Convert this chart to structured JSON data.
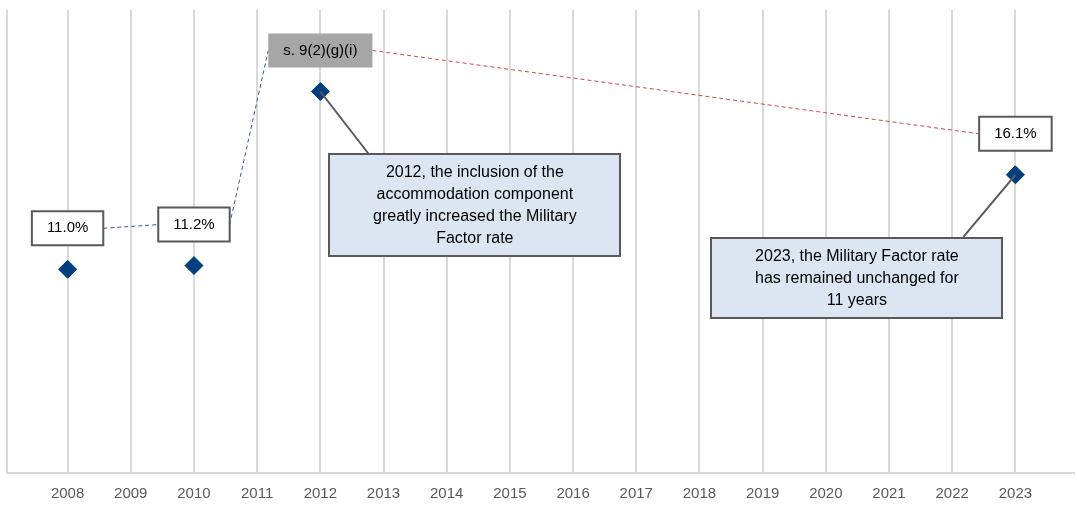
{
  "chart_data": {
    "type": "scatter",
    "categories": [
      "2008",
      "2009",
      "2010",
      "2011",
      "2012",
      "2013",
      "2014",
      "2015",
      "2016",
      "2017",
      "2018",
      "2019",
      "2020",
      "2021",
      "2022",
      "2023"
    ],
    "series": [
      {
        "color": "#003f7f",
        "values": [
          11.0,
          null,
          11.2,
          null,
          20.6,
          null,
          null,
          null,
          null,
          null,
          null,
          null,
          null,
          null,
          null,
          16.1
        ],
        "value_labels": [
          "11.0%",
          null,
          "11.2%",
          null,
          "s. 9(2)(g)(i)",
          null,
          null,
          null,
          null,
          null,
          null,
          null,
          null,
          null,
          null,
          "16.1%"
        ]
      }
    ],
    "ylim": [
      0,
      25
    ],
    "tick_labels": "x",
    "grid": "x",
    "legend": false,
    "marker": "diamond",
    "annotations": [
      {
        "text": "2012, the inclusion of the accommodation component greatly increased the Military Factor rate",
        "x": "2012",
        "y": 20.6
      },
      {
        "text": "2023, the Military Factor rate has remained unchanged for 11 years",
        "x": "2023",
        "y": 16.1
      }
    ]
  }
}
